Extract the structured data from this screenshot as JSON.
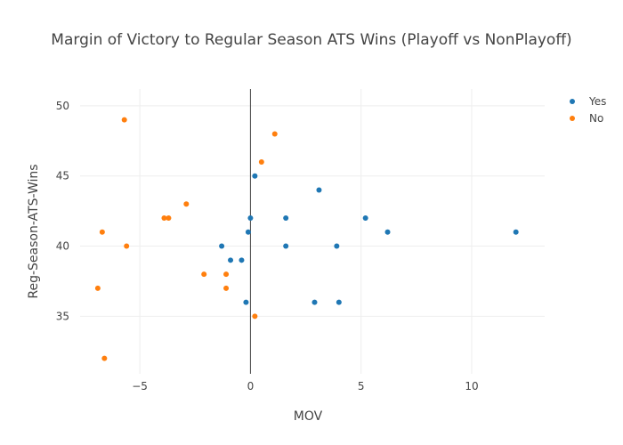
{
  "chart_data": {
    "type": "scatter",
    "title": "Margin of Victory to Regular Season ATS Wins (Playoff vs NonPlayoff)",
    "xlabel": "MOV",
    "ylabel": "Reg-Season-ATS-Wins",
    "xlim": [
      -7.7,
      13.3
    ],
    "ylim": [
      30.9,
      51.2
    ],
    "x_ticks": [
      -5,
      0,
      5,
      10
    ],
    "x_tick_labels": [
      "−5",
      "0",
      "5",
      "10"
    ],
    "y_ticks": [
      35,
      40,
      45,
      50
    ],
    "y_tick_labels": [
      "35",
      "40",
      "45",
      "50"
    ],
    "grid": true,
    "legend_position": "top-right",
    "series": [
      {
        "name": "Yes",
        "color": "#1f77b4",
        "points": [
          {
            "x": 0.2,
            "y": 45
          },
          {
            "x": 3.1,
            "y": 44
          },
          {
            "x": 0.0,
            "y": 42
          },
          {
            "x": 1.6,
            "y": 42
          },
          {
            "x": 5.2,
            "y": 42
          },
          {
            "x": -0.1,
            "y": 41
          },
          {
            "x": 6.2,
            "y": 41
          },
          {
            "x": 12.0,
            "y": 41
          },
          {
            "x": -1.3,
            "y": 40
          },
          {
            "x": 1.6,
            "y": 40
          },
          {
            "x": 3.9,
            "y": 40
          },
          {
            "x": -0.9,
            "y": 39
          },
          {
            "x": -0.4,
            "y": 39
          },
          {
            "x": -0.2,
            "y": 36
          },
          {
            "x": 2.9,
            "y": 36
          },
          {
            "x": 4.0,
            "y": 36
          }
        ]
      },
      {
        "name": "No",
        "color": "#ff7f0e",
        "points": [
          {
            "x": -5.7,
            "y": 49
          },
          {
            "x": 1.1,
            "y": 48
          },
          {
            "x": 0.5,
            "y": 46
          },
          {
            "x": -2.9,
            "y": 43
          },
          {
            "x": -3.9,
            "y": 42
          },
          {
            "x": -3.7,
            "y": 42
          },
          {
            "x": -6.7,
            "y": 41
          },
          {
            "x": -5.6,
            "y": 40
          },
          {
            "x": -2.1,
            "y": 38
          },
          {
            "x": -1.1,
            "y": 38
          },
          {
            "x": -6.9,
            "y": 37
          },
          {
            "x": -1.1,
            "y": 37
          },
          {
            "x": 0.2,
            "y": 35
          },
          {
            "x": -6.6,
            "y": 32
          }
        ]
      }
    ]
  }
}
